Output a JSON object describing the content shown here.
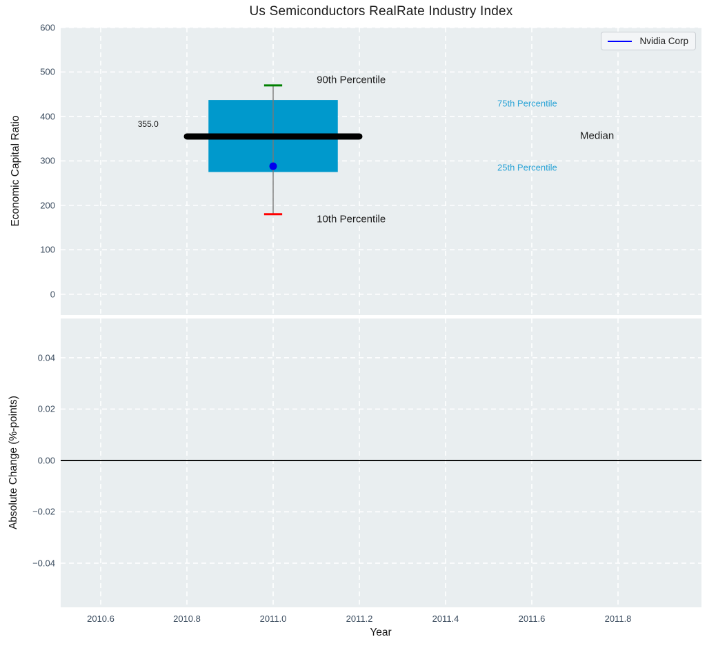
{
  "title": "Us Semiconductors RealRate Industry Index",
  "legend": {
    "label": "Nvidia Corp",
    "line_color": "#0000ff"
  },
  "colors": {
    "axes_bg": "#e9eef0",
    "grid": "#ffffff",
    "box_fill": "#0099cc",
    "median_line": "#000000",
    "whisker": "#787878",
    "cap_90th": "#008000",
    "cap_10th": "#ff0000",
    "company_dot": "#0000ee",
    "tick_label": "#3a4b5e",
    "percentile_label": "#2aa3d6",
    "zero_line": "#000000"
  },
  "chart_data": [
    {
      "type": "boxplot",
      "title": "Us Semiconductors RealRate Industry Index",
      "ylabel": "Economic Capital Ratio",
      "xlim": [
        2010.5072,
        2011.9936
      ],
      "ylim": [
        -46.8,
        600
      ],
      "yticks": [
        0,
        100,
        200,
        300,
        400,
        500,
        600
      ],
      "ytick_labels": [
        "0",
        "100",
        "200",
        "300",
        "400",
        "500",
        "600"
      ],
      "xticks": [
        2010.6,
        2010.8,
        2011.0,
        2011.2,
        2011.4,
        2011.6,
        2011.8
      ],
      "grid": "white-dashed",
      "legend_position": "upper right",
      "box": {
        "x_center": 2011.0,
        "x_left": 2010.85,
        "x_right": 2011.15,
        "p90": 470,
        "q3": 437,
        "median": 355.0,
        "q1": 275,
        "p10": 180,
        "median_x_left": 2010.8,
        "median_x_right": 2011.2,
        "cap_half_width": 0.021
      },
      "company_point": {
        "name": "Nvidia Corp",
        "x": 2011.0,
        "y": 288
      },
      "annotations": [
        {
          "text": "355.0",
          "x": 2010.686,
          "y": 383,
          "color": "#1b1b1b",
          "size": 12
        },
        {
          "text": "90th Percentile",
          "x": 2011.101,
          "y": 482,
          "color": "#1b1b1b",
          "size": 15
        },
        {
          "text": "10th Percentile",
          "x": 2011.101,
          "y": 169,
          "color": "#1b1b1b",
          "size": 15
        },
        {
          "text": "75th Percentile",
          "x": 2011.52,
          "y": 430,
          "color": "#2aa3d6",
          "size": 13
        },
        {
          "text": "Median",
          "x": 2011.712,
          "y": 357,
          "color": "#1b1b1b",
          "size": 15
        },
        {
          "text": "25th Percentile",
          "x": 2011.52,
          "y": 285,
          "color": "#2aa3d6",
          "size": 13
        }
      ]
    },
    {
      "type": "line",
      "ylabel": "Absolute Change (%-points)",
      "xlabel": "Year",
      "xlim": [
        2010.5072,
        2011.9936
      ],
      "ylim": [
        -0.0572,
        0.0553
      ],
      "yticks": [
        -0.04,
        -0.02,
        0.0,
        0.02,
        0.04
      ],
      "ytick_labels": [
        "−0.04",
        "−0.02",
        "0.00",
        "0.02",
        "0.04"
      ],
      "xticks": [
        2010.6,
        2010.8,
        2011.0,
        2011.2,
        2011.4,
        2011.6,
        2011.8
      ],
      "xtick_labels": [
        "2010.6",
        "2010.8",
        "2011.0",
        "2011.2",
        "2011.4",
        "2011.6",
        "2011.8"
      ],
      "grid": "white-dashed",
      "zero_line": 0.0,
      "series": []
    }
  ]
}
